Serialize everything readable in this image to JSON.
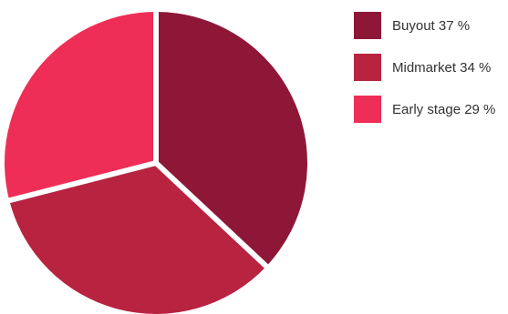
{
  "chart_data": {
    "type": "pie",
    "slices": [
      {
        "label": "Buyout 37 %",
        "value": 37,
        "color": "#8e1737"
      },
      {
        "label": "Midmarket 34 %",
        "value": 34,
        "color": "#b82340"
      },
      {
        "label": "Early stage 29 %",
        "value": 29,
        "color": "#ee2e56"
      }
    ],
    "start_position": "top, clockwise",
    "legend_position": "right"
  }
}
